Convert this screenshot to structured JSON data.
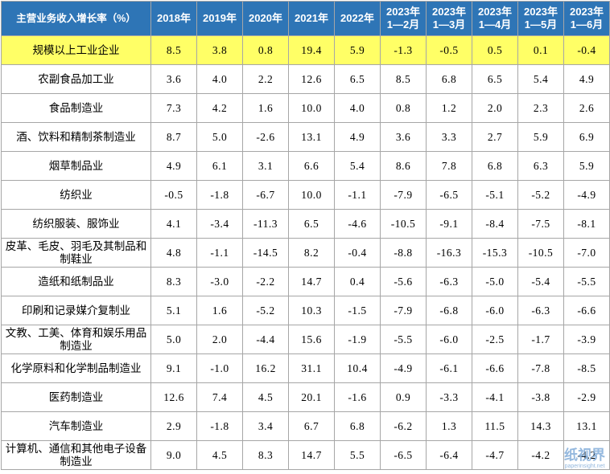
{
  "table": {
    "header": [
      "主营业务收入增长率（%）",
      "2018年",
      "2019年",
      "2020年",
      "2021年",
      "2022年",
      "2023年\n1—2月",
      "2023年\n1—3月",
      "2023年\n1—4月",
      "2023年\n1—5月",
      "2023年\n1—6月"
    ],
    "rows": [
      {
        "label": "规模以上工业企业",
        "values": [
          "8.5",
          "3.8",
          "0.8",
          "19.4",
          "5.9",
          "-1.3",
          "-0.5",
          "0.5",
          "0.1",
          "-0.4"
        ]
      },
      {
        "label": "农副食品加工业",
        "values": [
          "3.6",
          "4.0",
          "2.2",
          "12.6",
          "6.5",
          "8.5",
          "6.8",
          "6.5",
          "5.4",
          "4.9"
        ]
      },
      {
        "label": "食品制造业",
        "values": [
          "7.3",
          "4.2",
          "1.6",
          "10.0",
          "4.0",
          "0.8",
          "1.2",
          "2.0",
          "2.3",
          "2.6"
        ]
      },
      {
        "label": "酒、饮料和精制茶制造业",
        "values": [
          "8.7",
          "5.0",
          "-2.6",
          "13.1",
          "4.9",
          "3.6",
          "3.3",
          "2.7",
          "5.9",
          "6.9"
        ]
      },
      {
        "label": "烟草制品业",
        "values": [
          "4.9",
          "6.1",
          "3.1",
          "6.6",
          "5.4",
          "8.6",
          "7.8",
          "6.8",
          "6.3",
          "5.9"
        ]
      },
      {
        "label": "纺织业",
        "values": [
          "-0.5",
          "-1.8",
          "-6.7",
          "10.0",
          "-1.1",
          "-7.9",
          "-6.5",
          "-5.1",
          "-5.2",
          "-4.9"
        ]
      },
      {
        "label": "纺织服装、服饰业",
        "values": [
          "4.1",
          "-3.4",
          "-11.3",
          "6.5",
          "-4.6",
          "-10.5",
          "-9.1",
          "-8.4",
          "-7.5",
          "-8.1"
        ]
      },
      {
        "label": "皮革、毛皮、羽毛及其制品和制鞋业",
        "values": [
          "4.8",
          "-1.1",
          "-14.5",
          "8.2",
          "-0.4",
          "-8.8",
          "-16.3",
          "-15.3",
          "-10.5",
          "-7.0"
        ]
      },
      {
        "label": "造纸和纸制品业",
        "values": [
          "8.3",
          "-3.0",
          "-2.2",
          "14.7",
          "0.4",
          "-5.6",
          "-6.3",
          "-5.0",
          "-5.4",
          "-5.5"
        ]
      },
      {
        "label": "印刷和记录媒介复制业",
        "values": [
          "5.1",
          "1.6",
          "-5.2",
          "10.3",
          "-1.5",
          "-7.9",
          "-6.8",
          "-6.0",
          "-6.3",
          "-6.6"
        ]
      },
      {
        "label": "文教、工美、体育和娱乐用品制造业",
        "values": [
          "5.0",
          "2.0",
          "-4.4",
          "15.6",
          "-1.9",
          "-5.5",
          "-6.0",
          "-2.5",
          "-1.7",
          "-3.9"
        ]
      },
      {
        "label": "化学原料和化学制品制造业",
        "values": [
          "9.1",
          "-1.0",
          "16.2",
          "31.1",
          "10.4",
          "-4.9",
          "-6.1",
          "-6.6",
          "-7.8",
          "-8.5"
        ]
      },
      {
        "label": "医药制造业",
        "values": [
          "12.6",
          "7.4",
          "4.5",
          "20.1",
          "-1.6",
          "0.9",
          "-3.3",
          "-4.1",
          "-3.8",
          "-2.9"
        ]
      },
      {
        "label": "汽车制造业",
        "values": [
          "2.9",
          "-1.8",
          "3.4",
          "6.7",
          "6.8",
          "-6.2",
          "1.3",
          "11.5",
          "14.3",
          "13.1"
        ]
      },
      {
        "label": "计算机、通信和其他电子设备制造业",
        "values": [
          "9.0",
          "4.5",
          "8.3",
          "14.7",
          "5.5",
          "-6.5",
          "-6.4",
          "-4.7",
          "-4.2",
          "-4.2"
        ]
      }
    ]
  },
  "watermark": {
    "name": "纸视界",
    "url": "paperinsight.net"
  }
}
